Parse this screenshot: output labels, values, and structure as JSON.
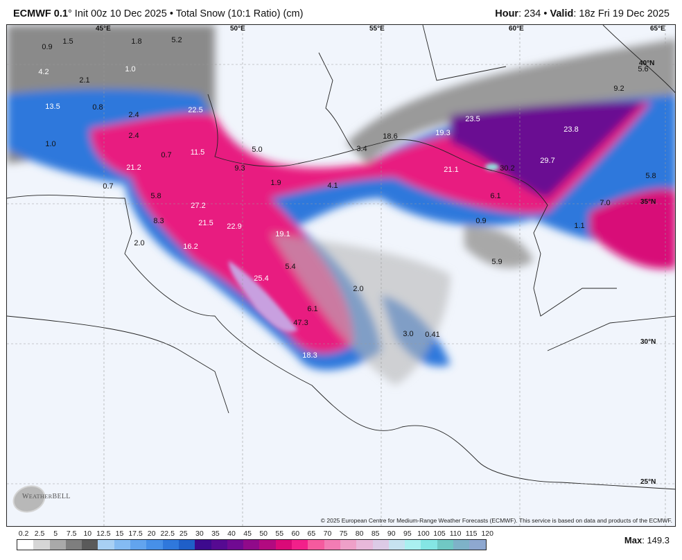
{
  "header": {
    "model": "ECMWF 0.1",
    "degree": "°",
    "init": "Init 00z 10 Dec 2025",
    "separator": "•",
    "product": "Total Snow (10:1 Ratio) (cm)",
    "hour_label": "Hour",
    "hour": "234",
    "valid_label": "Valid",
    "valid": "18z Fri 19 Dec 2025"
  },
  "map": {
    "longitude_labels": [
      "45°E",
      "50°E",
      "55°E",
      "60°E",
      "65°E"
    ],
    "latitude_labels": [
      "40°N",
      "35°N",
      "30°N",
      "25°N"
    ],
    "value_labels": [
      "0.9",
      "1.5",
      "1.8",
      "5.2",
      "4.2",
      "2.1",
      "1.0",
      "13.5",
      "0.8",
      "2.4",
      "2.4",
      "22.5",
      "1.0",
      "21.2",
      "11.5",
      "0.7",
      "5.8",
      "27.2",
      "8.3",
      "21.5",
      "22.9",
      "2.0",
      "16.2",
      "19.1",
      "9.3",
      "5.0",
      "3.4",
      "18.6",
      "19.3",
      "23.5",
      "23.8",
      "21.1",
      "30.2",
      "29.7",
      "6.1",
      "9.2",
      "5.6",
      "5.8",
      "7.0",
      "1.1",
      "0.9",
      "5.9",
      "5.4",
      "25.4",
      "6.1",
      "2.0",
      "47.3",
      "3.0",
      "0.41",
      "18.3",
      "0.7",
      "4.1",
      "1.9"
    ],
    "copyright": "© 2025 European Centre for Medium-Range Weather Forecasts (ECMWF). This service is based on data and products of the ECMWF.",
    "watermark": "WeatherBELL Analytics LLC"
  },
  "legend": {
    "ticks": [
      "0.2",
      "2.5",
      "5",
      "7.5",
      "10",
      "12.5",
      "15",
      "17.5",
      "20",
      "22.5",
      "25",
      "30",
      "35",
      "40",
      "45",
      "50",
      "55",
      "60",
      "65",
      "70",
      "75",
      "80",
      "85",
      "90",
      "95",
      "100",
      "105",
      "110",
      "115",
      "120"
    ],
    "colors": [
      "#ffffff",
      "#d6d6d6",
      "#a9a9a9",
      "#7e7e7e",
      "#5a5a5a",
      "#a8d0f4",
      "#84bbf2",
      "#62a4ee",
      "#4790e8",
      "#2f78dc",
      "#1f5fc8",
      "#3d0a8e",
      "#560a92",
      "#700a92",
      "#900a8a",
      "#b20a80",
      "#da0a78",
      "#f2208a",
      "#f55a9e",
      "#f27cb4",
      "#eea0c8",
      "#e8b8da",
      "#dccae6",
      "#c6e2f0",
      "#aaf0f0",
      "#84e6e4",
      "#70c8c4",
      "#7eb2c8",
      "#8ea8d0",
      "#a8a0dc",
      "#c08ce8"
    ],
    "max_label": "Max",
    "max_value": "149.3"
  }
}
